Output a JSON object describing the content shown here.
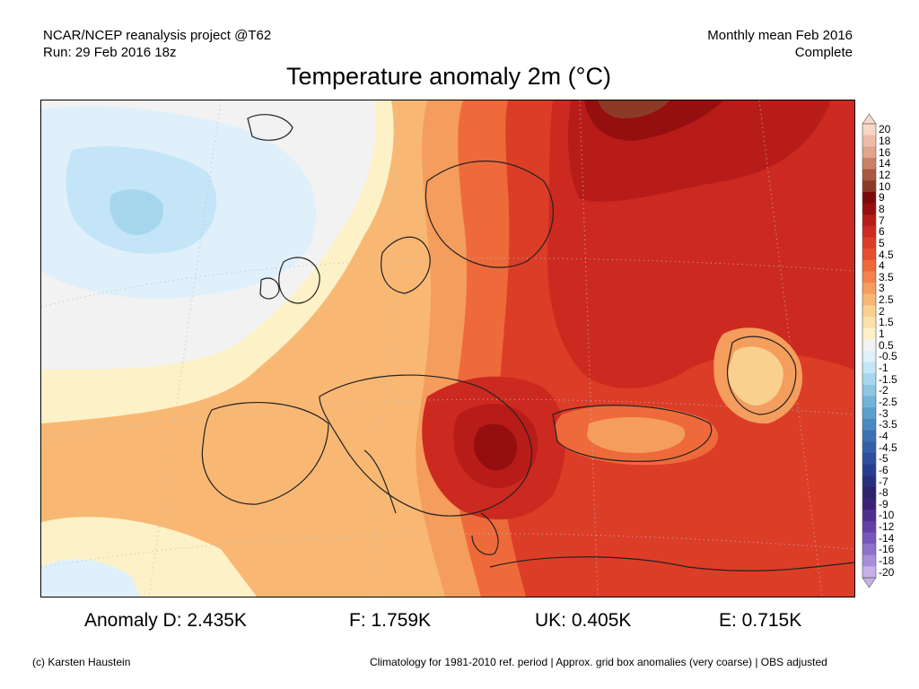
{
  "header": {
    "source_line": "NCAR/NCEP reanalysis project @T62",
    "run_line": "Run: 29 Feb 2016 18z",
    "period_line": "Monthly mean Feb 2016",
    "status_line": "Complete"
  },
  "title": "Temperature anomaly 2m (°C)",
  "colorbar": {
    "labels": [
      "20",
      "18",
      "16",
      "14",
      "12",
      "10",
      "9",
      "8",
      "7",
      "6",
      "5",
      "4.5",
      "4",
      "3.5",
      "3",
      "2.5",
      "2",
      "1.5",
      "1",
      "0.5",
      "-0.5",
      "-1",
      "-1.5",
      "-2",
      "-2.5",
      "-3",
      "-3.5",
      "-4",
      "-4.5",
      "-5",
      "-6",
      "-7",
      "-8",
      "-9",
      "-10",
      "-12",
      "-14",
      "-16",
      "-18",
      "-20"
    ],
    "colors": [
      "#f6d7c8",
      "#eebca6",
      "#e2a48a",
      "#c98266",
      "#a8583f",
      "#8c3a26",
      "#7a0b0b",
      "#960f10",
      "#b81c19",
      "#cc2a20",
      "#dc3d27",
      "#e54f2e",
      "#ee6a3b",
      "#f3834a",
      "#f59d5c",
      "#f8b873",
      "#fad08f",
      "#fce2a8",
      "#fdf1c8",
      "#f2f2f2",
      "#dff0fb",
      "#c3e5f7",
      "#a6d6ee",
      "#8cc6e3",
      "#72b4d8",
      "#5b9fcd",
      "#4a88c1",
      "#3c71b3",
      "#3460a8",
      "#2c4e9c",
      "#273e8e",
      "#27307d",
      "#2d236d",
      "#3b2279",
      "#4e2f8f",
      "#6240a5",
      "#7757ba",
      "#8f71cc",
      "#a98ddc",
      "#c5b0ea"
    ]
  },
  "stats": {
    "d": "Anomaly D: 2.435K",
    "f": "F: 1.759K",
    "uk": "UK: 0.405K",
    "e": "E: 0.715K"
  },
  "footer": {
    "credit": "(c) Karsten Haustein",
    "note": "Climatology for 1981-2010 ref. period | Approx. grid box anomalies (very coarse) | OBS adjusted"
  }
}
